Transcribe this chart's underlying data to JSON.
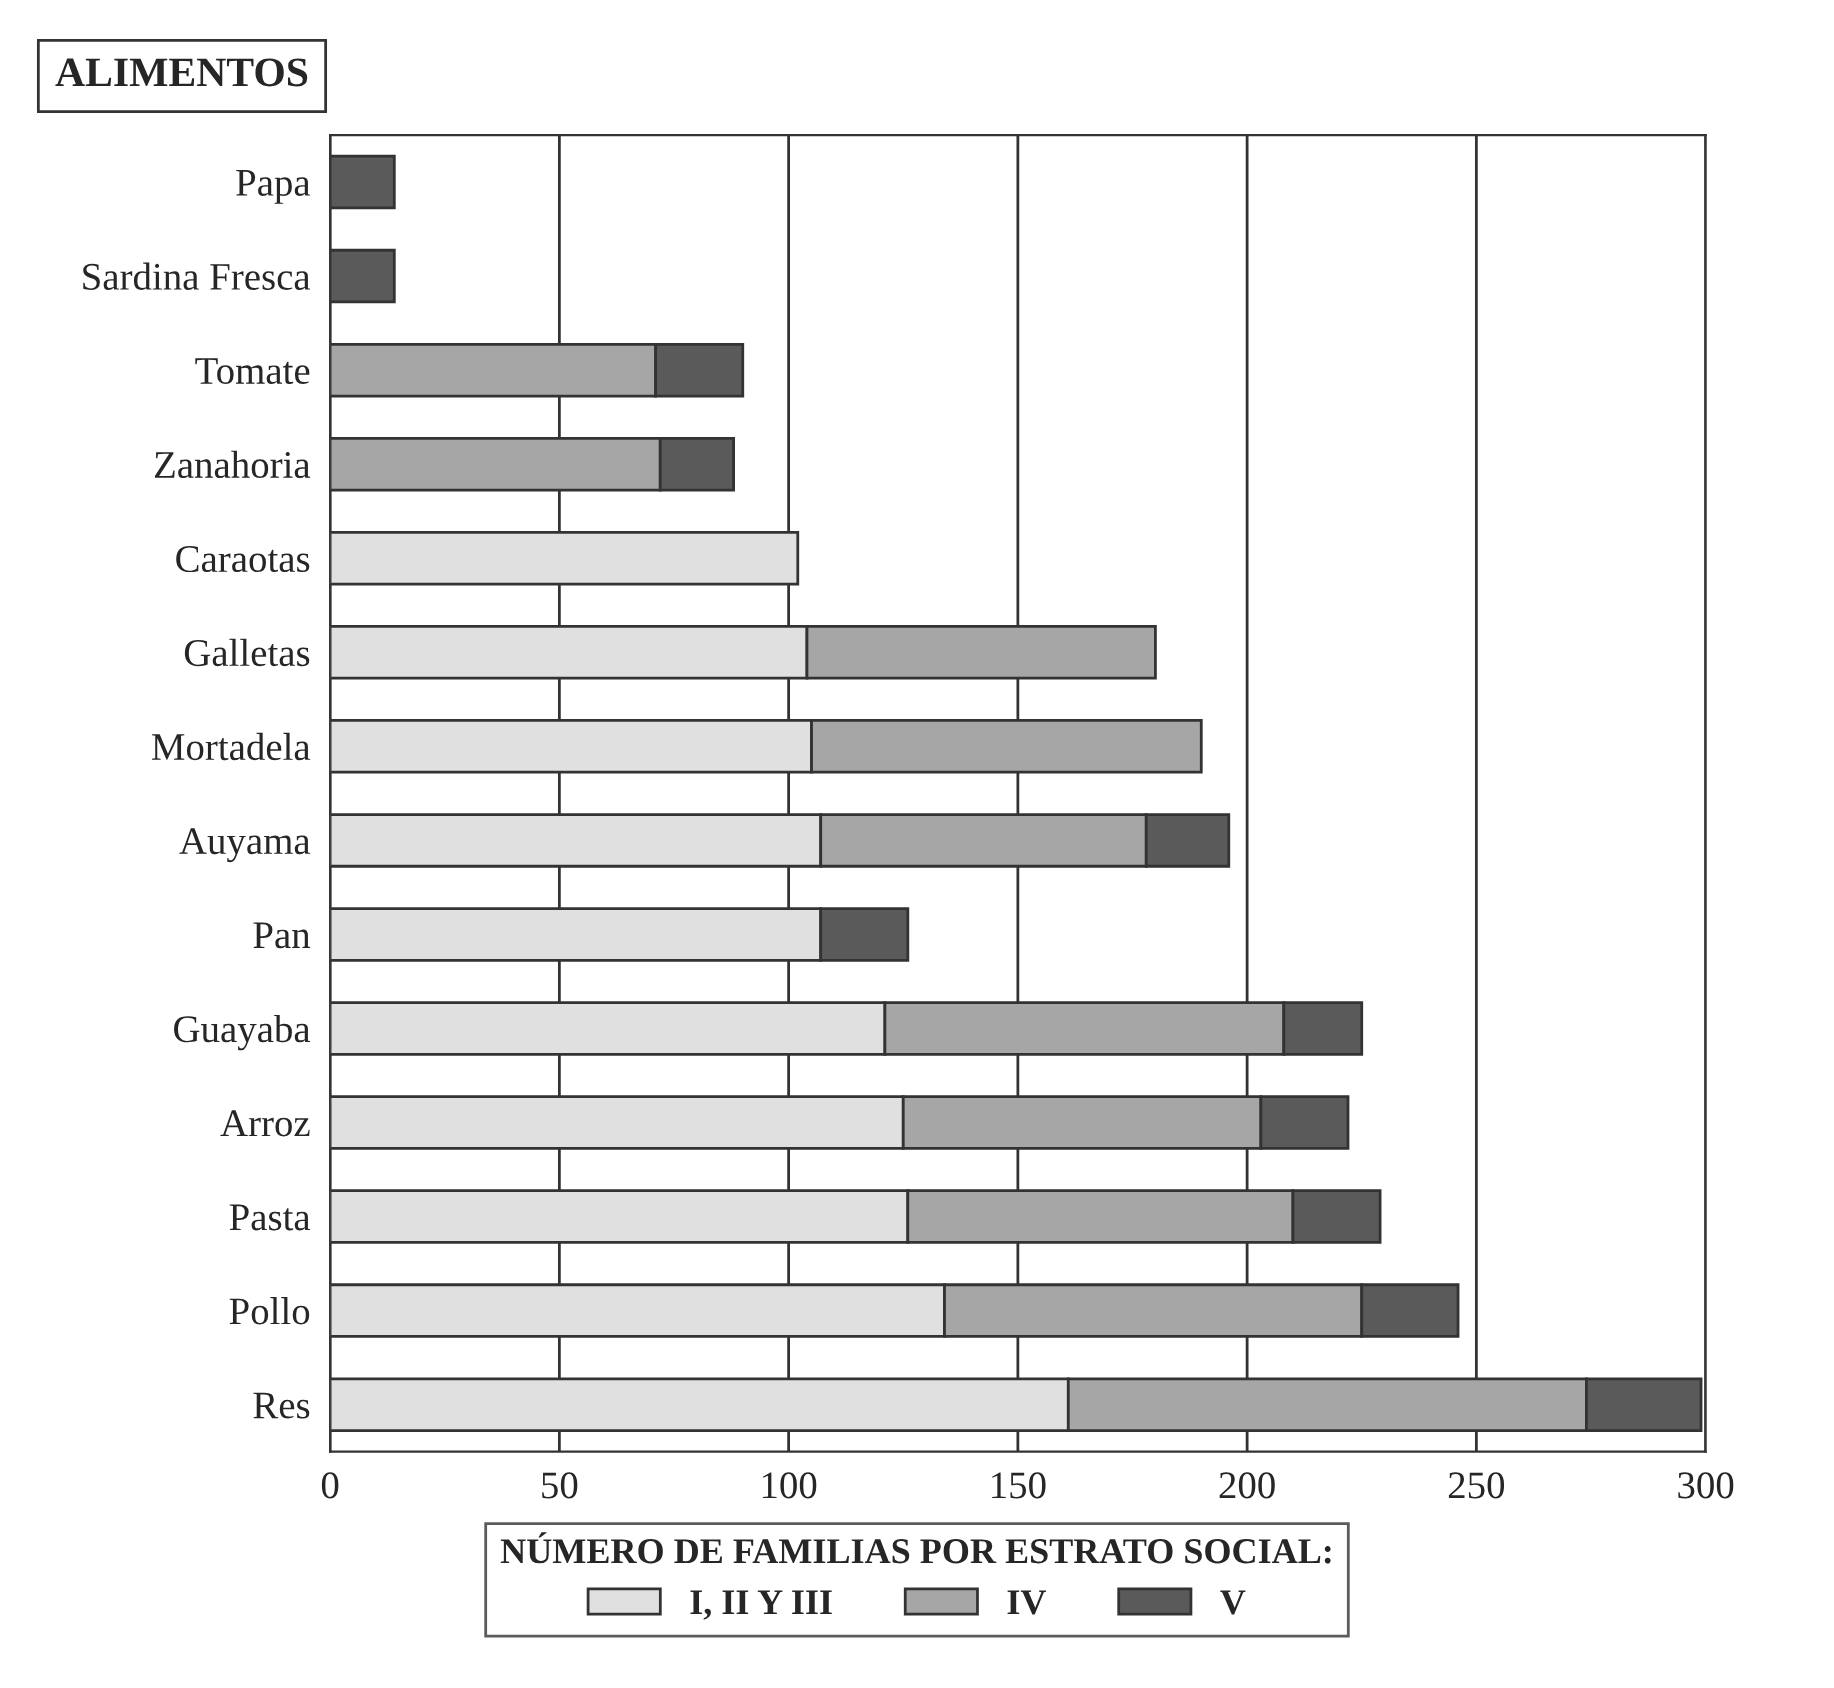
{
  "chart_data": {
    "type": "bar",
    "orientation": "horizontal",
    "stacked": true,
    "title": "ALIMENTOS",
    "categories": [
      "Papa",
      "Sardina Fresca",
      "Tomate",
      "Zanahoria",
      "Caraotas",
      "Galletas",
      "Mortadela",
      "Auyama",
      "Pan",
      "Guayaba",
      "Arroz",
      "Pasta",
      "Pollo",
      "Res"
    ],
    "series": [
      {
        "name": "I, II Y III",
        "color": "#e0e0e0",
        "values": [
          null,
          null,
          null,
          null,
          102,
          104,
          105,
          107,
          107,
          121,
          125,
          126,
          134,
          161
        ]
      },
      {
        "name": "IV",
        "color": "#a6a6a6",
        "values": [
          null,
          null,
          71,
          72,
          null,
          76,
          85,
          71,
          null,
          87,
          78,
          84,
          91,
          113
        ]
      },
      {
        "name": "V",
        "color": "#5a5a5a",
        "values": [
          14,
          14,
          19,
          16,
          null,
          null,
          null,
          18,
          19,
          17,
          19,
          19,
          21,
          25
        ]
      }
    ],
    "legend_title": "NÚMERO DE FAMILIAS POR ESTRATO SOCIAL:",
    "legend": "bottom",
    "xlim": [
      0,
      300
    ],
    "xticks": [
      0,
      50,
      100,
      150,
      200,
      250,
      300
    ],
    "grid": "x"
  }
}
